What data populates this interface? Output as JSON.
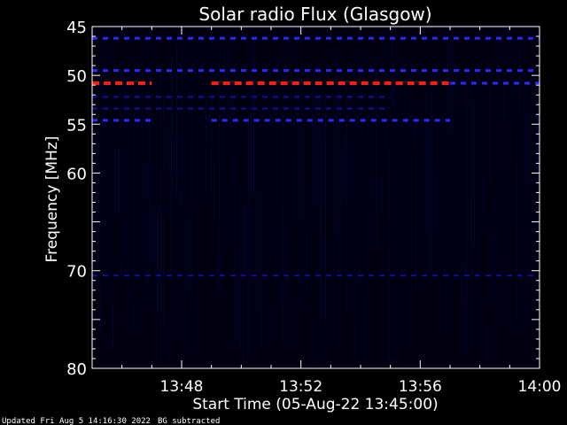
{
  "chart_data": {
    "type": "heatmap",
    "title": "Solar radio Flux (Glasgow)",
    "xlabel": "Start Time (05-Aug-22 13:45:00)",
    "ylabel": "Frequency [MHz]",
    "x_unit": "time (HH:MM)",
    "xlim": [
      "13:45",
      "14:00"
    ],
    "x_ticks": [
      "13:48",
      "13:52",
      "13:56",
      "14:00"
    ],
    "ylim": [
      45,
      80
    ],
    "y_scale": "linear, inverted (45 at top)",
    "y_ticks": [
      45,
      50,
      55,
      60,
      70,
      80
    ],
    "grid": false,
    "background": "#000000",
    "colors": {
      "weak": "#1010a0",
      "medium": "#2a2aff",
      "strong": "#ff1a1a"
    },
    "features": [
      {
        "kind": "dashed-band",
        "freq_mhz": 46.2,
        "start": "13:45",
        "end": "14:00",
        "intensity": "medium"
      },
      {
        "kind": "dashed-band",
        "freq_mhz": 49.5,
        "start": "13:45",
        "end": "14:00",
        "intensity": "medium"
      },
      {
        "kind": "dashed-band",
        "freq_mhz": 50.8,
        "start": "13:45",
        "end": "13:47",
        "intensity": "strong"
      },
      {
        "kind": "dashed-band",
        "freq_mhz": 50.8,
        "start": "13:49",
        "end": "13:57",
        "intensity": "strong"
      },
      {
        "kind": "dashed-band",
        "freq_mhz": 50.8,
        "start": "13:57",
        "end": "14:00",
        "intensity": "medium"
      },
      {
        "kind": "dashed-band",
        "freq_mhz": 52.2,
        "start": "13:45",
        "end": "13:55",
        "intensity": "weak"
      },
      {
        "kind": "dashed-band",
        "freq_mhz": 53.4,
        "start": "13:45",
        "end": "13:55",
        "intensity": "weak"
      },
      {
        "kind": "dashed-band",
        "freq_mhz": 54.6,
        "start": "13:45",
        "end": "13:47",
        "intensity": "medium"
      },
      {
        "kind": "dashed-band",
        "freq_mhz": 54.6,
        "start": "13:49",
        "end": "13:57",
        "intensity": "medium"
      },
      {
        "kind": "dashed-band",
        "freq_mhz": 70.5,
        "start": "13:45",
        "end": "14:00",
        "intensity": "weak"
      }
    ]
  },
  "footer": {
    "updated": "Updated Fri Aug  5 14:16:30 2022",
    "note": "BG subtracted"
  }
}
